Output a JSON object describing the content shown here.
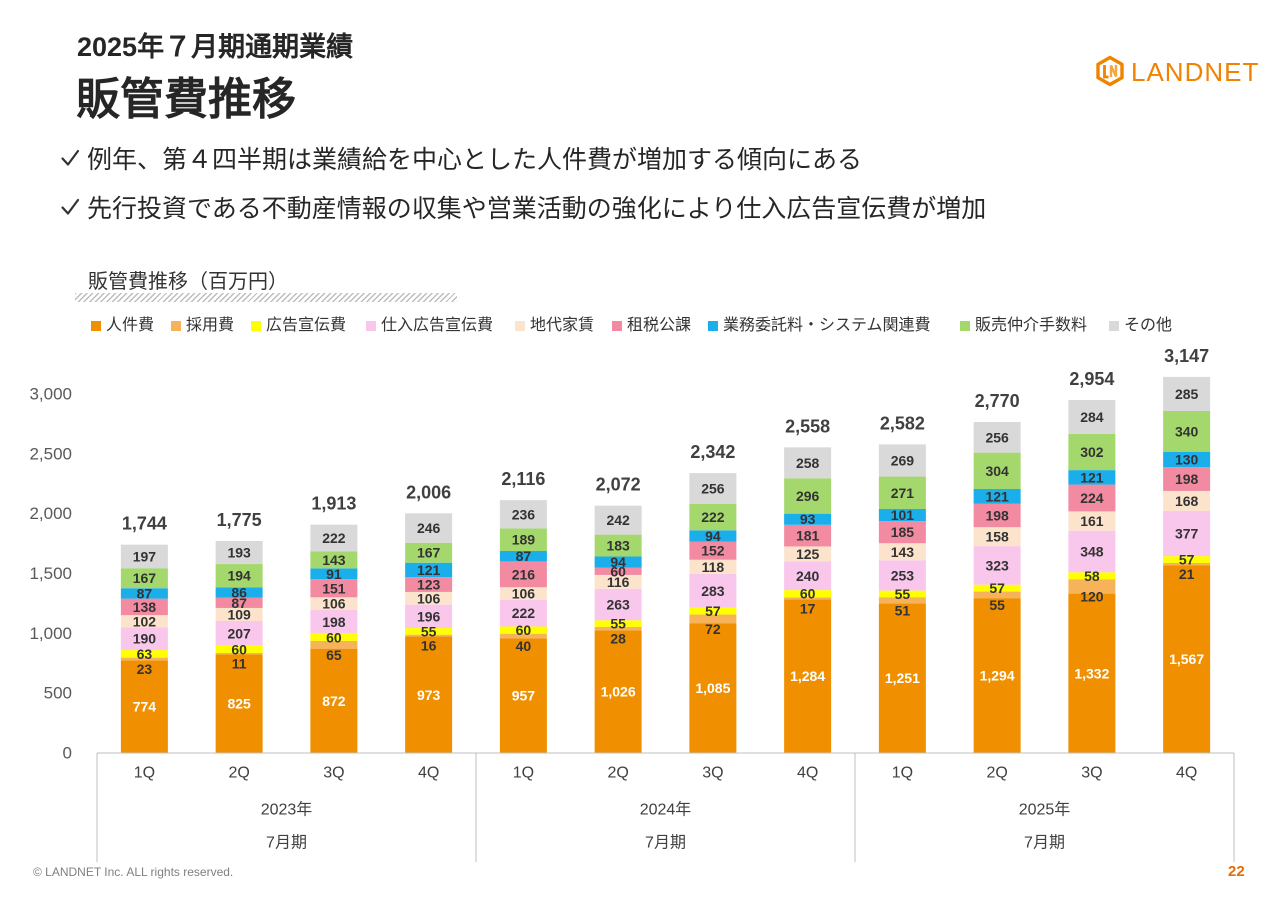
{
  "header": {
    "subtitle": "2025年７月期通期業績",
    "title": "販管費推移",
    "logo_text": "LANDNET"
  },
  "bullets": {
    "items": [
      "例年、第４四半期は業績給を中心とした人件費が増加する傾向にある",
      "先行投資である不動産情報の収集や営業活動の強化により仕入広告宣伝費が増加"
    ]
  },
  "icons": {
    "bullet_marker": "checkmark-icon",
    "logo": "landnet-logo-icon"
  },
  "colors": {
    "brand": "#F08300",
    "page_number": "#E26B0A",
    "text": "#262626"
  },
  "chart_data": {
    "type": "bar",
    "stacked": true,
    "title": "販管費推移（百万円）",
    "categories": [
      "1Q",
      "2Q",
      "3Q",
      "4Q",
      "1Q",
      "2Q",
      "3Q",
      "4Q",
      "1Q",
      "2Q",
      "3Q",
      "4Q"
    ],
    "category_groups": [
      {
        "label": "2023年",
        "sublabel": "7月期"
      },
      {
        "label": "2024年",
        "sublabel": "7月期"
      },
      {
        "label": "2025年",
        "sublabel": "7月期"
      }
    ],
    "ylim": [
      0,
      3000
    ],
    "yticks": [
      0,
      500,
      1000,
      1500,
      2000,
      2500,
      3000
    ],
    "grid": false,
    "legend_position": "top",
    "data_label_color": "#333333",
    "series": [
      {
        "name": "人件費",
        "color": "#F09000",
        "label_color": "#FFFFFF",
        "values": [
          774,
          825,
          872,
          973,
          957,
          1026,
          1085,
          1284,
          1251,
          1294,
          1332,
          1567
        ]
      },
      {
        "name": "採用費",
        "color": "#F7B35A",
        "values": [
          23,
          11,
          65,
          16,
          40,
          28,
          72,
          17,
          51,
          55,
          120,
          21
        ]
      },
      {
        "name": "広告宣伝費",
        "color": "#FFFF00",
        "values": [
          63,
          60,
          60,
          55,
          60,
          55,
          57,
          60,
          55,
          57,
          58,
          57
        ]
      },
      {
        "name": "仕入広告宣伝費",
        "color": "#F9C6EC",
        "values": [
          190,
          207,
          198,
          196,
          222,
          263,
          283,
          240,
          253,
          323,
          348,
          377
        ]
      },
      {
        "name": "地代家賃",
        "color": "#FCE4CC",
        "values": [
          102,
          109,
          106,
          106,
          106,
          116,
          118,
          125,
          143,
          158,
          161,
          168
        ]
      },
      {
        "name": "租税公課",
        "color": "#F28BA2",
        "values": [
          138,
          87,
          151,
          123,
          216,
          60,
          152,
          181,
          185,
          198,
          224,
          198
        ]
      },
      {
        "name": "業務委託料・システム関連費",
        "color": "#1AAEEA",
        "values": [
          87,
          86,
          91,
          121,
          87,
          94,
          94,
          93,
          101,
          121,
          121,
          130
        ]
      },
      {
        "name": "販売仲介手数料",
        "color": "#A4D86C",
        "values": [
          167,
          194,
          143,
          167,
          189,
          183,
          222,
          296,
          271,
          304,
          302,
          340
        ]
      },
      {
        "name": "その他",
        "color": "#D9D9D9",
        "values": [
          197,
          193,
          222,
          246,
          236,
          242,
          256,
          258,
          269,
          256,
          284,
          285
        ]
      }
    ],
    "totals": [
      1744,
      1775,
      1913,
      2006,
      2116,
      2072,
      2342,
      2558,
      2582,
      2770,
      2954,
      3147
    ]
  },
  "footer": {
    "copyright": "© LANDNET Inc. ALL rights reserved.",
    "page_number": "22"
  }
}
